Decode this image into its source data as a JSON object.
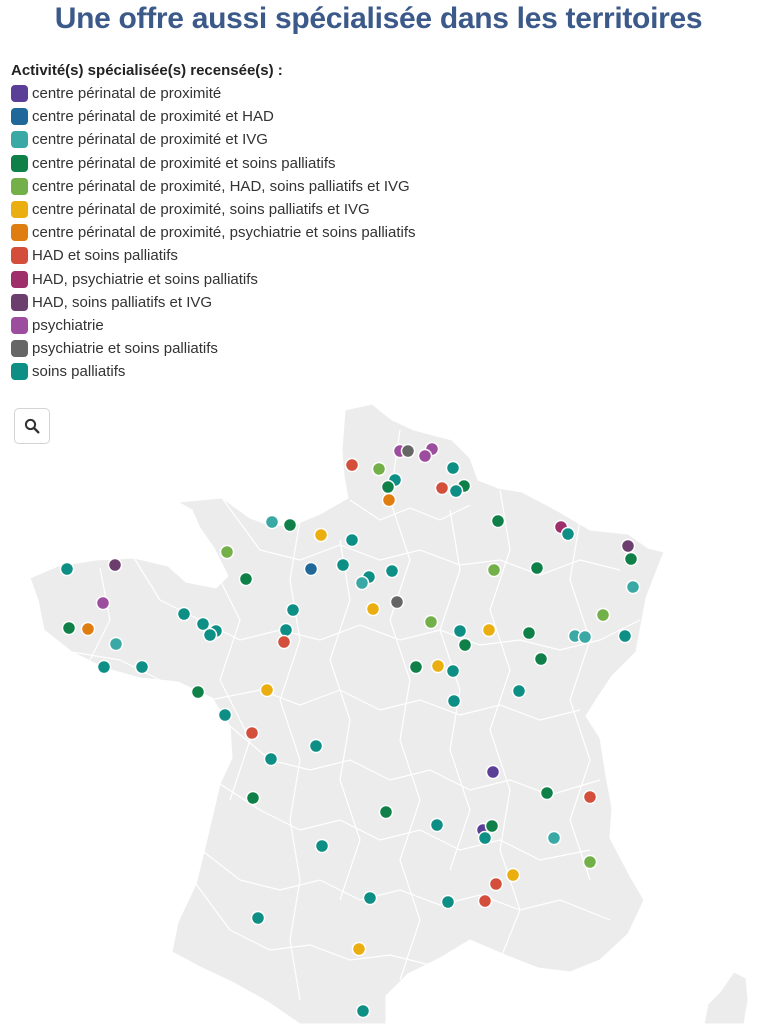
{
  "title": "Une offre aussi spécialisée dans les territoires",
  "legend": {
    "title": "Activité(s) spécialisée(s) recensée(s) :",
    "items": [
      {
        "label": "centre périnatal de proximité",
        "color": "#5b3e96"
      },
      {
        "label": "centre périnatal de proximité et HAD",
        "color": "#1f6899"
      },
      {
        "label": "centre périnatal de proximité et IVG",
        "color": "#3aa8a4"
      },
      {
        "label": "centre périnatal de proximité et soins palliatifs",
        "color": "#0e8048"
      },
      {
        "label": "centre périnatal de proximité, HAD, soins palliatifs et IVG",
        "color": "#73b04a"
      },
      {
        "label": "centre périnatal de proximité, soins palliatifs et IVG",
        "color": "#eaae10"
      },
      {
        "label": "centre périnatal de proximité, psychiatrie et soins palliatifs",
        "color": "#e07d10"
      },
      {
        "label": "HAD et soins palliatifs",
        "color": "#d34f3c"
      },
      {
        "label": "HAD, psychiatrie et soins palliatifs",
        "color": "#9e2f6a"
      },
      {
        "label": "HAD, soins palliatifs et IVG",
        "color": "#6b3e6e"
      },
      {
        "label": "psychiatrie",
        "color": "#9c4d9e"
      },
      {
        "label": "psychiatrie et soins palliatifs",
        "color": "#666666"
      },
      {
        "label": "soins palliatifs",
        "color": "#0e8f85"
      }
    ]
  },
  "zoom_button": {
    "icon": "search-icon"
  },
  "map": {
    "land_color": "#ececec",
    "border_color": "#ffffff"
  }
}
